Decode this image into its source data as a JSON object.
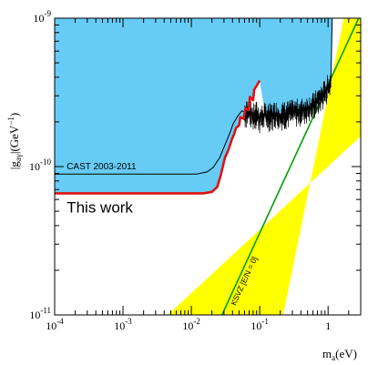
{
  "chart_data": {
    "type": "area",
    "x_scale": "log",
    "y_scale": "log",
    "xlim": [
      0.0001,
      3.0
    ],
    "ylim": [
      1e-11,
      1e-09
    ],
    "grid": false,
    "xlabel": {
      "base": "m",
      "sub": "a",
      "unit": "(eV)"
    },
    "ylabel": {
      "main": "|g",
      "sub": "aγ",
      "unit_open": "|(GeV",
      "unit_sup": "−1",
      "unit_close": ")"
    },
    "x_ticks": [
      {
        "value": 0.0001,
        "base": "10",
        "exp": "-4"
      },
      {
        "value": 0.001,
        "base": "10",
        "exp": "-3"
      },
      {
        "value": 0.01,
        "base": "10",
        "exp": "-2"
      },
      {
        "value": 0.1,
        "base": "10",
        "exp": "-1"
      },
      {
        "value": 1,
        "base": "1",
        "exp": ""
      }
    ],
    "y_ticks": [
      {
        "value": 1e-11,
        "base": "10",
        "exp": "-11"
      },
      {
        "value": 1e-10,
        "base": "10",
        "exp": "-10"
      },
      {
        "value": 1e-09,
        "base": "10",
        "exp": "-9"
      }
    ],
    "colors": {
      "excluded_region": "#66ccf5",
      "ksvz_band": "#ffff00",
      "ksvz_line": "#00a000",
      "this_work": "#e01010",
      "cast_line": "#000000"
    },
    "series": [
      {
        "name": "This work",
        "style": "red-thick",
        "points": [
          [
            0.0001,
            6.6e-11
          ],
          [
            0.015,
            6.6e-11
          ],
          [
            0.02,
            6.75e-11
          ],
          [
            0.024,
            7.3e-11
          ],
          [
            0.027,
            8.8e-11
          ],
          [
            0.031,
            1.15e-10
          ],
          [
            0.035,
            1.3e-10
          ],
          [
            0.039,
            1.52e-10
          ],
          [
            0.042,
            1.65e-10
          ],
          [
            0.045,
            1.82e-10
          ],
          [
            0.05,
            1.9e-10
          ],
          [
            0.052,
            2.15e-10
          ],
          [
            0.058,
            2.1e-10
          ],
          [
            0.062,
            2.48e-10
          ],
          [
            0.069,
            2.4e-10
          ],
          [
            0.072,
            2.95e-10
          ],
          [
            0.08,
            2.8e-10
          ],
          [
            0.083,
            3.3e-10
          ],
          [
            0.09,
            3.5e-10
          ],
          [
            0.1,
            3.8e-10
          ]
        ]
      },
      {
        "name": "CAST 2003-2011",
        "style": "black-thin",
        "points": [
          [
            0.0001,
            8.9e-11
          ],
          [
            0.012,
            8.9e-11
          ],
          [
            0.017,
            9.2e-11
          ],
          [
            0.021,
            9.9e-11
          ],
          [
            0.026,
            1.15e-10
          ],
          [
            0.031,
            1.4e-10
          ],
          [
            0.036,
            1.65e-10
          ],
          [
            0.041,
            1.95e-10
          ],
          [
            0.048,
            2.2e-10
          ],
          [
            0.055,
            2.38e-10
          ],
          [
            0.062,
            2.3e-10
          ],
          [
            0.07,
            2.4e-10
          ],
          [
            0.08,
            2.2e-10
          ],
          [
            0.09,
            2.3e-10
          ],
          [
            0.1,
            2.15e-10
          ],
          [
            0.12,
            2.25e-10
          ],
          [
            0.14,
            2.2e-10
          ],
          [
            0.17,
            2.3e-10
          ],
          [
            0.2,
            2.25e-10
          ],
          [
            0.25,
            2.3e-10
          ],
          [
            0.3,
            2.35e-10
          ],
          [
            0.4,
            2.4e-10
          ],
          [
            0.5,
            2.5e-10
          ],
          [
            0.6,
            2.6e-10
          ],
          [
            0.7,
            2.8e-10
          ],
          [
            0.8,
            3e-10
          ],
          [
            0.9,
            3.2e-10
          ],
          [
            1.0,
            3.5e-10
          ],
          [
            1.1,
            3.8e-10
          ],
          [
            1.15,
            1e-09
          ]
        ]
      },
      {
        "name": "KSVZ [E/N = 0]",
        "style": "green-line",
        "points": [
          [
            0.028,
            1e-11
          ],
          [
            2.8,
            1e-09
          ]
        ]
      }
    ],
    "ksvz_band": {
      "lower_edge": [
        [
          0.0045,
          1e-11
        ],
        [
          3.0,
          1.6e-10
        ]
      ],
      "upper_edge": [
        [
          0.22,
          1e-11
        ],
        [
          1.7,
          1e-09
        ]
      ]
    },
    "annotations": [
      {
        "key": "cast",
        "text": "CAST 2003-2011",
        "x": 0.00015,
        "y": 9.6e-11,
        "style": "small"
      },
      {
        "key": "this_work",
        "text": "This work",
        "x": 0.00015,
        "y": 4.9e-11,
        "style": "big"
      },
      {
        "key": "ksvz",
        "text": "KSVZ [E/N = 0]",
        "x": 0.044,
        "y": 1.15e-11,
        "style": "rotated"
      }
    ]
  }
}
